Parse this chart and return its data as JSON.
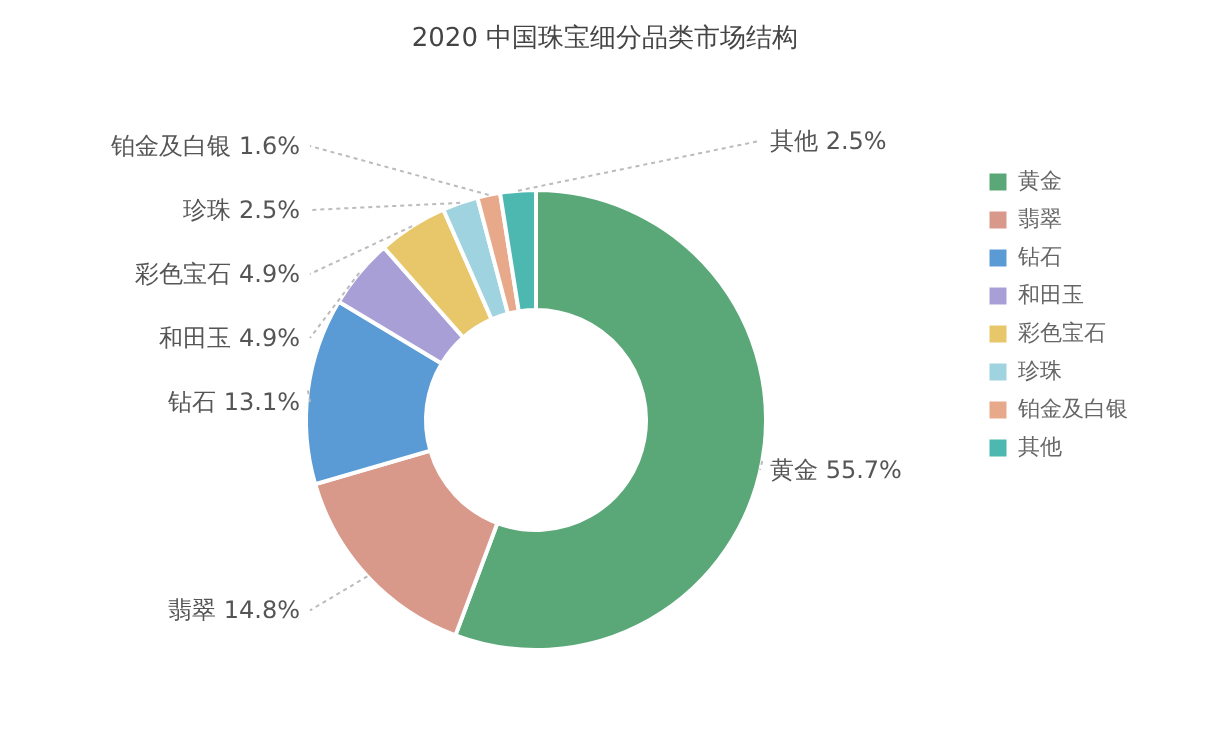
{
  "chart_data": {
    "type": "donut",
    "title": "2020 中国珠宝细分品类市场结构",
    "categories": [
      "黄金",
      "翡翠",
      "钻石",
      "和田玉",
      "彩色宝石",
      "珍珠",
      "铂金及白银",
      "其他"
    ],
    "values": [
      55.7,
      14.8,
      13.1,
      4.9,
      4.9,
      2.5,
      1.6,
      2.5
    ],
    "value_labels": [
      "55.7%",
      "14.8%",
      "13.1%",
      "4.9%",
      "4.9%",
      "2.5%",
      "1.6%",
      "2.5%"
    ],
    "colors": [
      "#5aa777",
      "#d9998a",
      "#5b9bd5",
      "#a89fd6",
      "#e8c76a",
      "#9fd3df",
      "#e8a98a",
      "#4cb8b0"
    ],
    "legend": "right"
  }
}
